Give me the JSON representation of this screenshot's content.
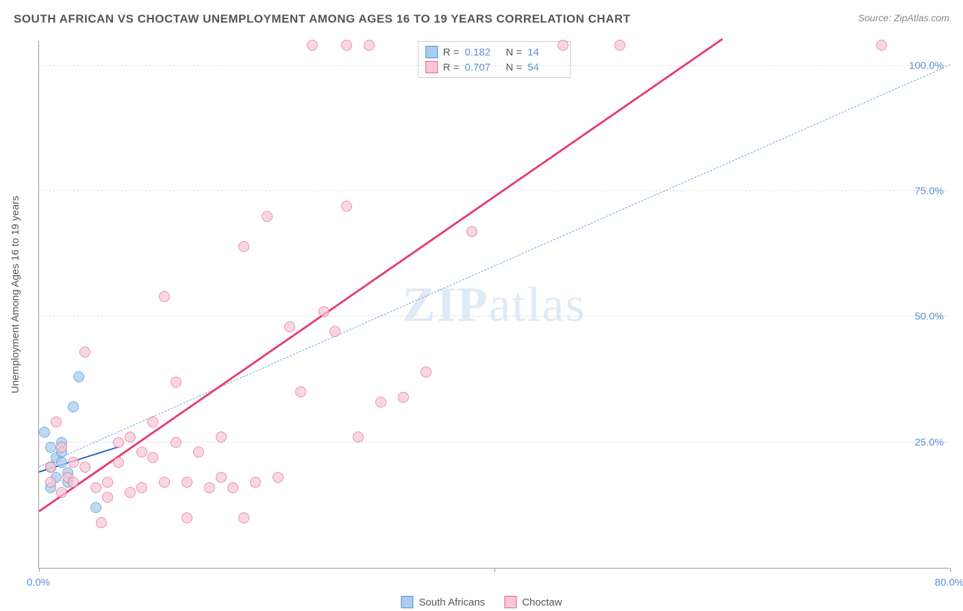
{
  "title": "SOUTH AFRICAN VS CHOCTAW UNEMPLOYMENT AMONG AGES 16 TO 19 YEARS CORRELATION CHART",
  "source": "Source: ZipAtlas.com",
  "y_axis_label": "Unemployment Among Ages 16 to 19 years",
  "watermark": "ZIPatlas",
  "chart": {
    "type": "scatter",
    "xlim": [
      0,
      80
    ],
    "ylim": [
      0,
      105
    ],
    "x_ticks": [
      0,
      40,
      80
    ],
    "x_tick_labels": [
      "0.0%",
      "",
      "80.0%"
    ],
    "y_ticks": [
      25,
      50,
      75,
      100
    ],
    "y_tick_labels": [
      "25.0%",
      "50.0%",
      "75.0%",
      "100.0%"
    ],
    "grid_color": "#dddddd",
    "axis_color": "#999999",
    "tick_label_color": "#5b8fd6",
    "background_color": "#ffffff"
  },
  "series": [
    {
      "id": "south_africans",
      "label": "South Africans",
      "marker_fill": "#a9cdf0",
      "marker_stroke": "#4f8ed0",
      "marker_opacity": 0.75,
      "trend_color": "#2a62b8",
      "trend_style": "solid-thin",
      "reference_line_color": "#6a9fe0",
      "reference_line_style": "dashed",
      "r_value": "0.182",
      "n_value": "14",
      "trend": {
        "x1": 0,
        "y1": 19,
        "x2": 7,
        "y2": 24
      },
      "reference": {
        "x1": 0,
        "y1": 20,
        "x2": 80,
        "y2": 100
      },
      "points": [
        {
          "x": 0.5,
          "y": 27
        },
        {
          "x": 1,
          "y": 24
        },
        {
          "x": 1,
          "y": 20
        },
        {
          "x": 1.5,
          "y": 18
        },
        {
          "x": 1.5,
          "y": 22
        },
        {
          "x": 2,
          "y": 25
        },
        {
          "x": 2,
          "y": 21
        },
        {
          "x": 2.5,
          "y": 17
        },
        {
          "x": 2.5,
          "y": 19
        },
        {
          "x": 3,
          "y": 32
        },
        {
          "x": 3.5,
          "y": 38
        },
        {
          "x": 5,
          "y": 12
        },
        {
          "x": 1,
          "y": 16
        },
        {
          "x": 2,
          "y": 23
        }
      ]
    },
    {
      "id": "choctaw",
      "label": "Choctaw",
      "marker_fill": "#f7c7d6",
      "marker_stroke": "#e85b86",
      "marker_opacity": 0.7,
      "trend_color": "#e73d72",
      "trend_style": "solid-thick",
      "r_value": "0.707",
      "n_value": "54",
      "trend": {
        "x1": 0,
        "y1": 11,
        "x2": 60,
        "y2": 105
      },
      "points": [
        {
          "x": 1,
          "y": 20
        },
        {
          "x": 1,
          "y": 17
        },
        {
          "x": 1.5,
          "y": 29
        },
        {
          "x": 2,
          "y": 15
        },
        {
          "x": 2,
          "y": 24
        },
        {
          "x": 2.5,
          "y": 18
        },
        {
          "x": 3,
          "y": 21
        },
        {
          "x": 3,
          "y": 17
        },
        {
          "x": 4,
          "y": 20
        },
        {
          "x": 4,
          "y": 43
        },
        {
          "x": 5,
          "y": 16
        },
        {
          "x": 5.5,
          "y": 9
        },
        {
          "x": 6,
          "y": 14
        },
        {
          "x": 6,
          "y": 17
        },
        {
          "x": 7,
          "y": 25
        },
        {
          "x": 7,
          "y": 21
        },
        {
          "x": 8,
          "y": 15
        },
        {
          "x": 8,
          "y": 26
        },
        {
          "x": 9,
          "y": 23
        },
        {
          "x": 9,
          "y": 16
        },
        {
          "x": 10,
          "y": 29
        },
        {
          "x": 10,
          "y": 22
        },
        {
          "x": 11,
          "y": 17
        },
        {
          "x": 11,
          "y": 54
        },
        {
          "x": 12,
          "y": 25
        },
        {
          "x": 12,
          "y": 37
        },
        {
          "x": 13,
          "y": 17
        },
        {
          "x": 13,
          "y": 10
        },
        {
          "x": 14,
          "y": 23
        },
        {
          "x": 15,
          "y": 16
        },
        {
          "x": 16,
          "y": 26
        },
        {
          "x": 16,
          "y": 18
        },
        {
          "x": 17,
          "y": 16
        },
        {
          "x": 18,
          "y": 10
        },
        {
          "x": 18,
          "y": 64
        },
        {
          "x": 19,
          "y": 17
        },
        {
          "x": 20,
          "y": 70
        },
        {
          "x": 21,
          "y": 18
        },
        {
          "x": 22,
          "y": 48
        },
        {
          "x": 23,
          "y": 35
        },
        {
          "x": 24,
          "y": 104
        },
        {
          "x": 25,
          "y": 51
        },
        {
          "x": 26,
          "y": 47
        },
        {
          "x": 27,
          "y": 104
        },
        {
          "x": 27,
          "y": 72
        },
        {
          "x": 28,
          "y": 26
        },
        {
          "x": 29,
          "y": 104
        },
        {
          "x": 30,
          "y": 33
        },
        {
          "x": 32,
          "y": 34
        },
        {
          "x": 34,
          "y": 39
        },
        {
          "x": 38,
          "y": 67
        },
        {
          "x": 46,
          "y": 104
        },
        {
          "x": 51,
          "y": 104
        },
        {
          "x": 74,
          "y": 104
        }
      ]
    }
  ],
  "stats_box": {
    "r_label": "R =",
    "n_label": "N ="
  },
  "bottom_legend": {
    "items": [
      "South Africans",
      "Choctaw"
    ]
  }
}
